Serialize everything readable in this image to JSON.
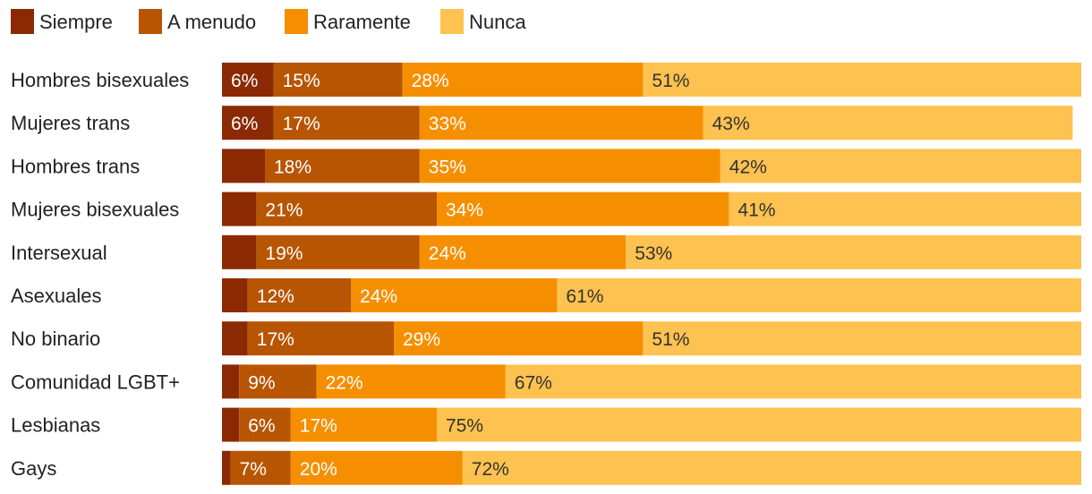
{
  "chart_data": {
    "type": "bar",
    "orientation": "horizontal",
    "stacked": true,
    "normalized_percent": true,
    "legend_position": "top-left",
    "categories": [
      "Hombres bisexuales",
      "Mujeres trans",
      "Hombres trans",
      "Mujeres bisexuales",
      "Intersexual",
      "Asexuales",
      "No binario",
      "Comunidad LGBT+",
      "Lesbianas",
      "Gays"
    ],
    "series": [
      {
        "name": "Siempre",
        "color": "#8B2A02",
        "values": [
          6,
          6,
          5,
          4,
          4,
          3,
          3,
          2,
          2,
          1
        ],
        "labels": [
          "6%",
          "6%",
          "",
          "",
          "",
          "",
          "",
          "",
          "",
          ""
        ],
        "label_color": "#ffffff"
      },
      {
        "name": "A menudo",
        "color": "#B85503",
        "values": [
          15,
          17,
          18,
          21,
          19,
          12,
          17,
          9,
          6,
          7
        ],
        "labels": [
          "15%",
          "17%",
          "18%",
          "21%",
          "19%",
          "12%",
          "17%",
          "9%",
          "6%",
          "7%"
        ],
        "label_color": "#ffffff"
      },
      {
        "name": "Raramente",
        "color": "#F68F00",
        "values": [
          28,
          33,
          35,
          34,
          24,
          24,
          29,
          22,
          17,
          20
        ],
        "labels": [
          "28%",
          "33%",
          "35%",
          "34%",
          "24%",
          "24%",
          "29%",
          "22%",
          "17%",
          "20%"
        ],
        "label_color": "#ffffff"
      },
      {
        "name": "Nunca",
        "color": "#FDC24F",
        "values": [
          51,
          43,
          42,
          41,
          53,
          61,
          51,
          67,
          75,
          72
        ],
        "labels": [
          "51%",
          "43%",
          "42%",
          "41%",
          "53%",
          "61%",
          "51%",
          "67%",
          "75%",
          "72%"
        ],
        "label_color": "#333333"
      }
    ],
    "xlim": [
      0,
      100
    ]
  }
}
